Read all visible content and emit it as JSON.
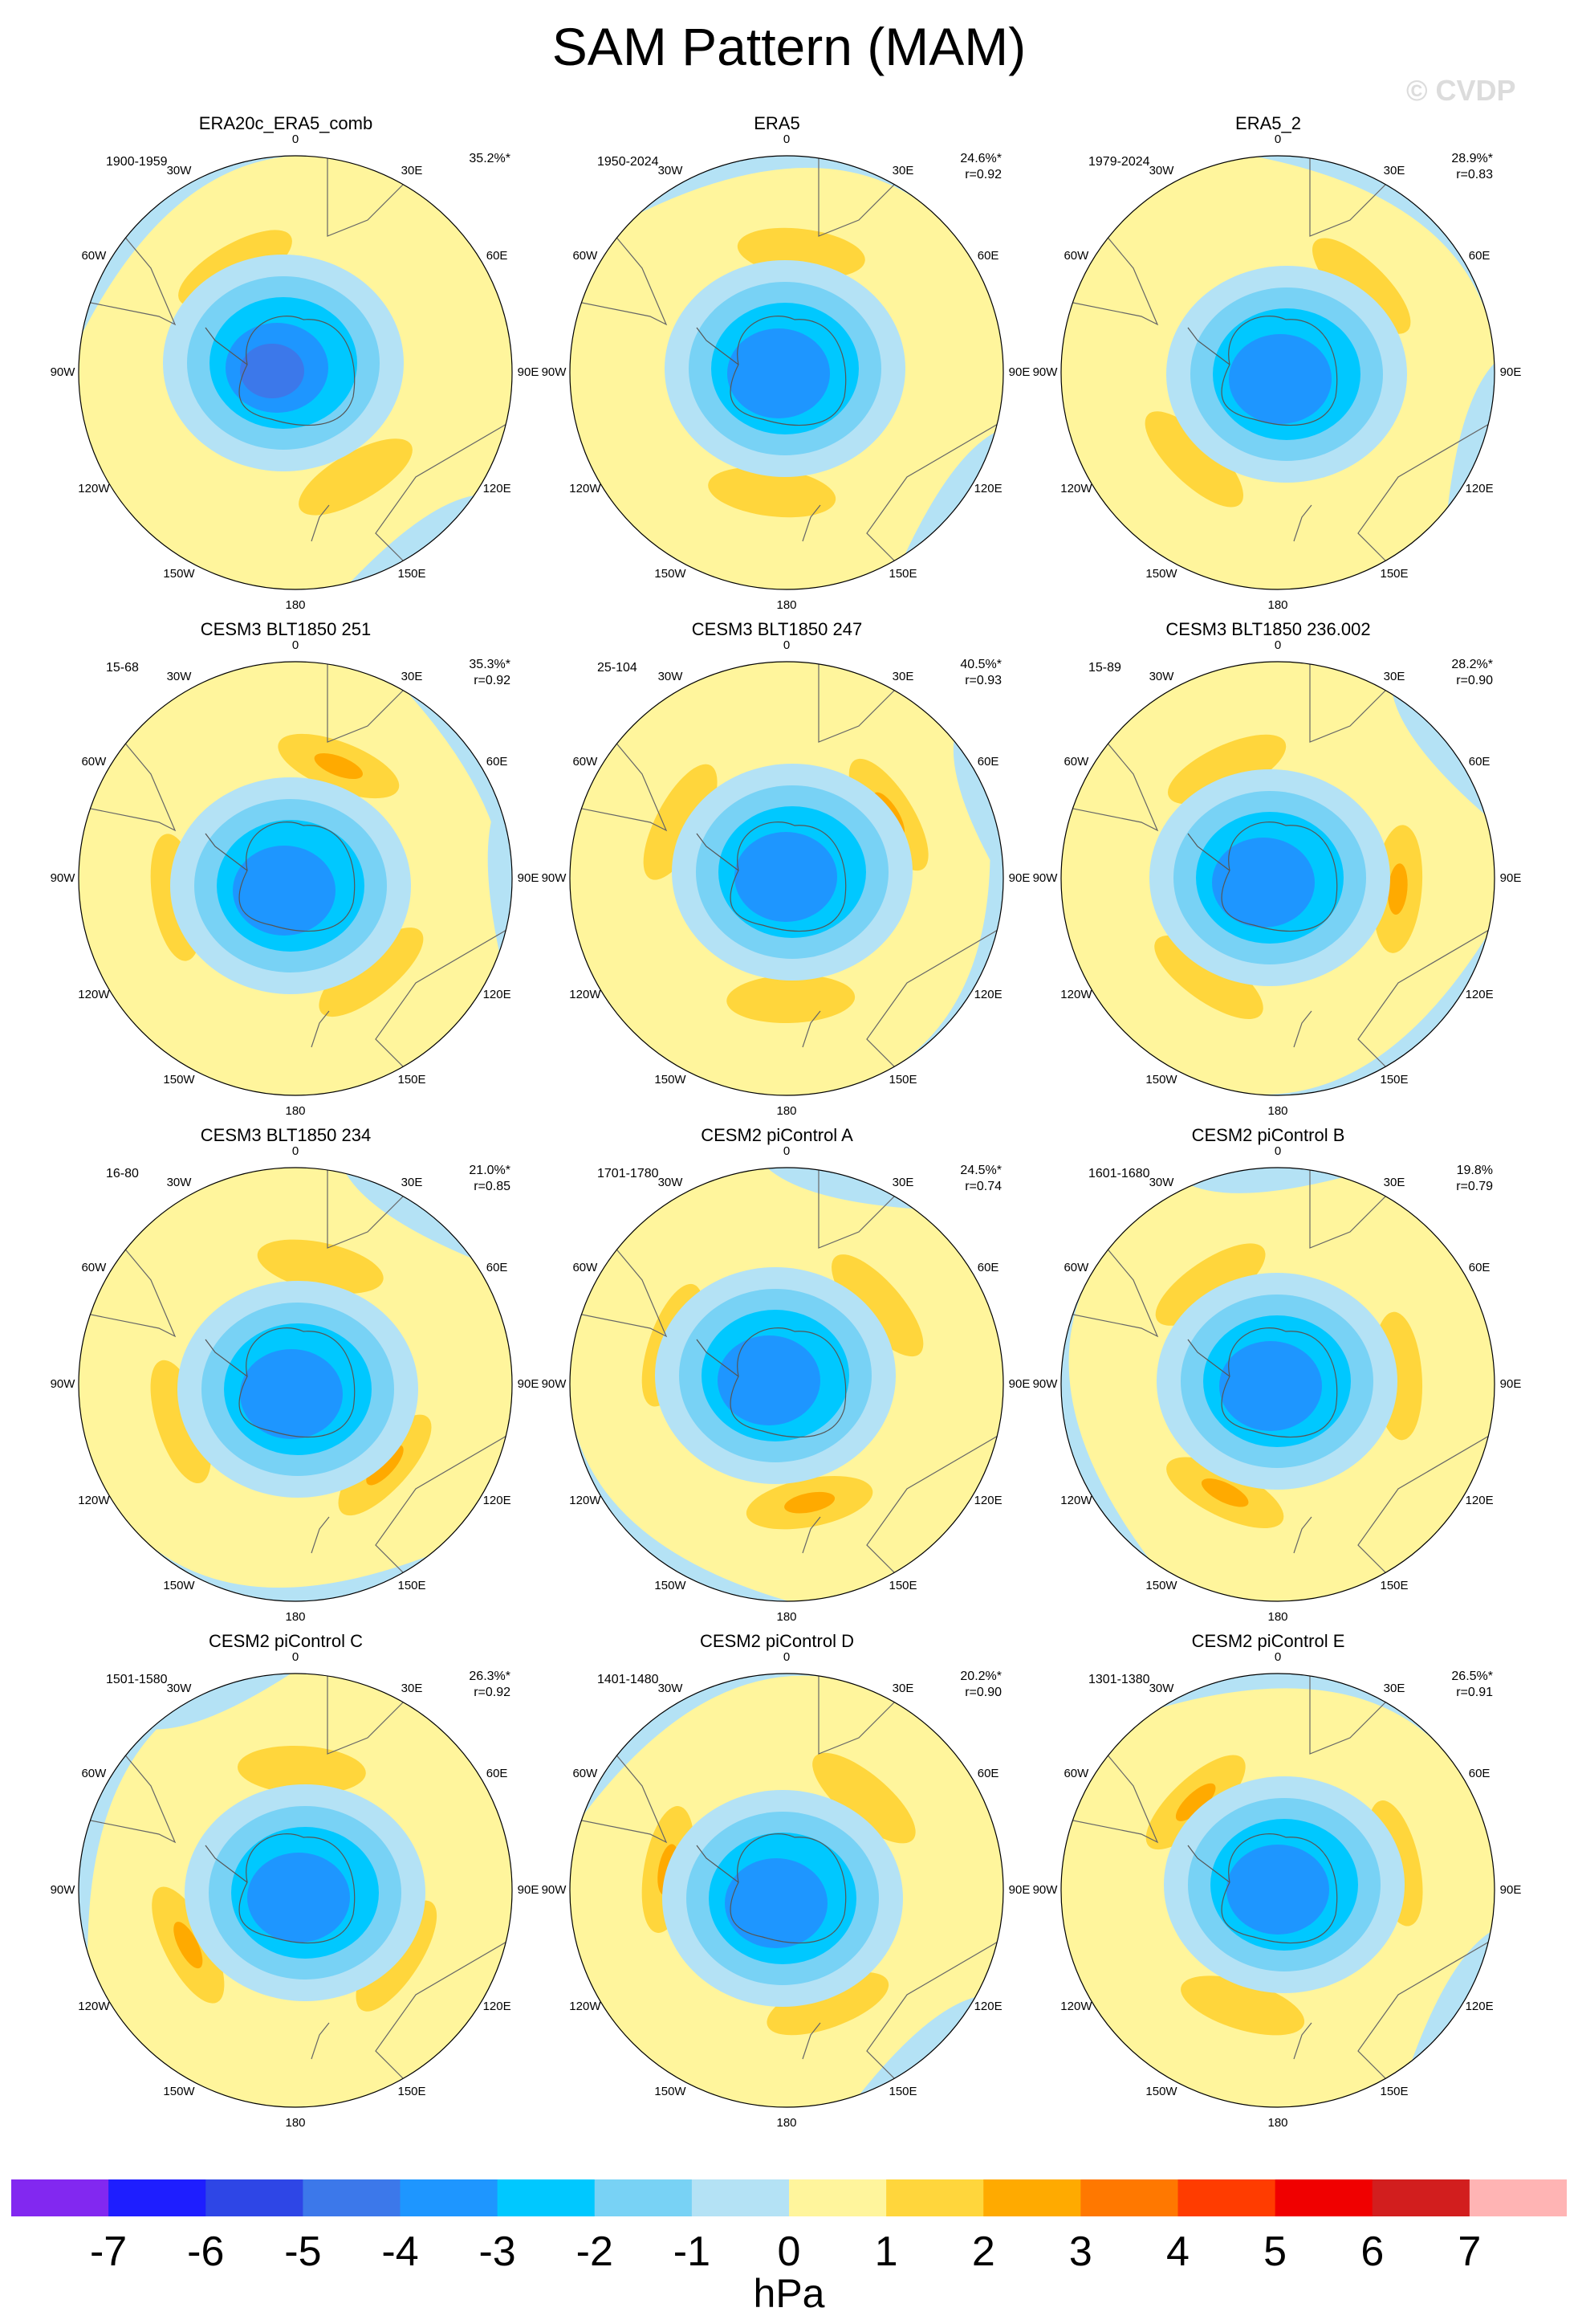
{
  "figure": {
    "title": "SAM Pattern (MAM)",
    "watermark": "© CVDP",
    "units": "hPa",
    "projection": "south-polar-stereographic",
    "longitude_labels": [
      "0",
      "30E",
      "60E",
      "90E",
      "120E",
      "150E",
      "180",
      "150W",
      "120W",
      "90W",
      "60W",
      "30W"
    ]
  },
  "colorbar": {
    "labels": [
      "-7",
      "-6",
      "-5",
      "-4",
      "-3",
      "-2",
      "-1",
      "0",
      "1",
      "2",
      "3",
      "4",
      "5",
      "6",
      "7"
    ],
    "colors": [
      "#8228f0",
      "#1e1eff",
      "#2e46e6",
      "#3c78ea",
      "#1e96ff",
      "#00c8ff",
      "#78d2f5",
      "#b4e2f5",
      "#fff59c",
      "#ffd63c",
      "#ffaa00",
      "#ff7800",
      "#ff3c00",
      "#f00000",
      "#d21e1e",
      "#ffb4b4"
    ]
  },
  "panels": [
    {
      "title": "ERA20c_ERA5_comb",
      "period": "1900-1959",
      "pct": "35.2%*",
      "r": ""
    },
    {
      "title": "ERA5",
      "period": "1950-2024",
      "pct": "24.6%*",
      "r": "r=0.92"
    },
    {
      "title": "ERA5_2",
      "period": "1979-2024",
      "pct": "28.9%*",
      "r": "r=0.83"
    },
    {
      "title": "CESM3 BLT1850 251",
      "period": "15-68",
      "pct": "35.3%*",
      "r": "r=0.92"
    },
    {
      "title": "CESM3 BLT1850 247",
      "period": "25-104",
      "pct": "40.5%*",
      "r": "r=0.93"
    },
    {
      "title": "CESM3 BLT1850 236.002",
      "period": "15-89",
      "pct": "28.2%*",
      "r": "r=0.90"
    },
    {
      "title": "CESM3 BLT1850 234",
      "period": "16-80",
      "pct": "21.0%*",
      "r": "r=0.85"
    },
    {
      "title": "CESM2 piControl A",
      "period": "1701-1780",
      "pct": "24.5%*",
      "r": "r=0.74"
    },
    {
      "title": "CESM2 piControl B",
      "period": "1601-1680",
      "pct": "19.8%",
      "r": "r=0.79"
    },
    {
      "title": "CESM2 piControl C",
      "period": "1501-1580",
      "pct": "26.3%*",
      "r": "r=0.92"
    },
    {
      "title": "CESM2 piControl D",
      "period": "1401-1480",
      "pct": "20.2%*",
      "r": "r=0.90"
    },
    {
      "title": "CESM2 piControl E",
      "period": "1301-1380",
      "pct": "26.5%*",
      "r": "r=0.91"
    }
  ]
}
